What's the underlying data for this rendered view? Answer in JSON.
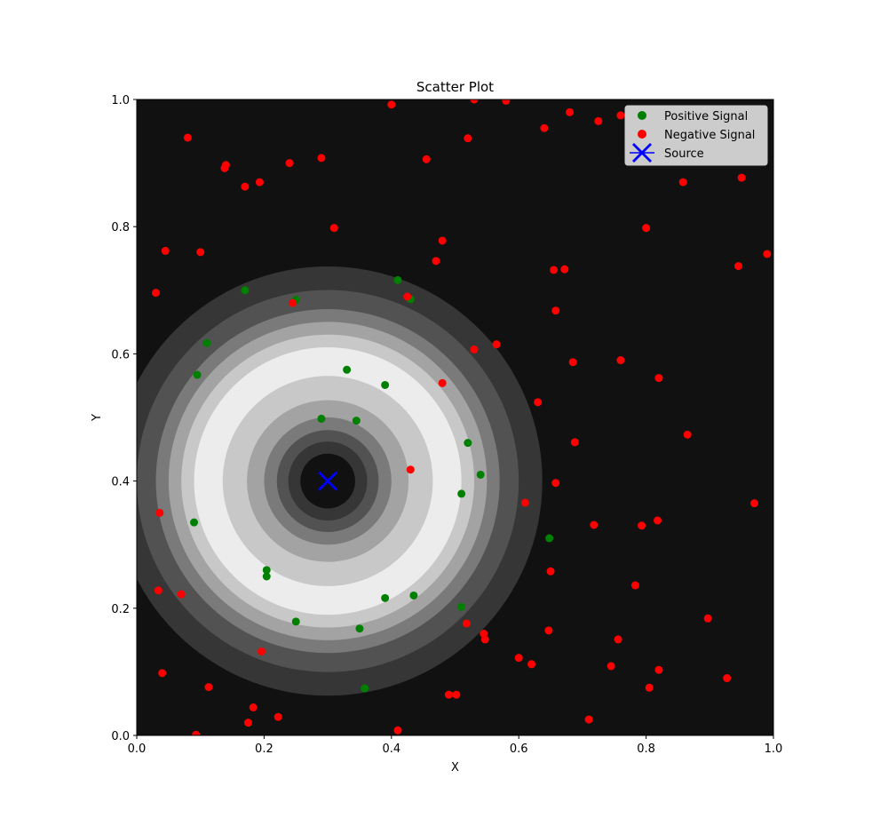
{
  "chart_data": {
    "type": "scatter",
    "title": "Scatter Plot",
    "xlabel": "X",
    "ylabel": "Y",
    "xlim": [
      0,
      1
    ],
    "ylim": [
      0,
      1
    ],
    "xticks": [
      "0.0",
      "0.2",
      "0.4",
      "0.6",
      "0.8",
      "1.0"
    ],
    "yticks": [
      "0.0",
      "0.2",
      "0.4",
      "0.6",
      "0.8",
      "1.0"
    ],
    "grid": false,
    "legend_position": "top-right",
    "background_color": "#111111",
    "field": {
      "type": "ring-contour",
      "center": [
        0.3,
        0.4
      ],
      "levels": [
        {
          "r": 0.337,
          "color": "#363636"
        },
        {
          "r": 0.3,
          "color": "#525252"
        },
        {
          "r": 0.27,
          "color": "#7a7a7a"
        },
        {
          "r": 0.25,
          "color": "#a3a3a3"
        },
        {
          "r": 0.23,
          "color": "#c8c8c8"
        },
        {
          "r": 0.21,
          "color": "#ececec"
        },
        {
          "r": 0.165,
          "color": "#c8c8c8"
        },
        {
          "r": 0.127,
          "color": "#a3a3a3"
        },
        {
          "r": 0.1,
          "color": "#7a7a7a"
        },
        {
          "r": 0.08,
          "color": "#525252"
        },
        {
          "r": 0.062,
          "color": "#363636"
        },
        {
          "r": 0.043,
          "color": "#111111"
        }
      ]
    },
    "series": [
      {
        "name": "Positive Signal",
        "color": "#008000",
        "marker": "circle",
        "points": [
          [
            0.17,
            0.7
          ],
          [
            0.25,
            0.685
          ],
          [
            0.41,
            0.716
          ],
          [
            0.43,
            0.686
          ],
          [
            0.11,
            0.617
          ],
          [
            0.095,
            0.567
          ],
          [
            0.33,
            0.575
          ],
          [
            0.39,
            0.551
          ],
          [
            0.29,
            0.498
          ],
          [
            0.345,
            0.495
          ],
          [
            0.52,
            0.46
          ],
          [
            0.54,
            0.41
          ],
          [
            0.51,
            0.38
          ],
          [
            0.09,
            0.335
          ],
          [
            0.648,
            0.31
          ],
          [
            0.204,
            0.26
          ],
          [
            0.204,
            0.25
          ],
          [
            0.39,
            0.216
          ],
          [
            0.435,
            0.22
          ],
          [
            0.51,
            0.202
          ],
          [
            0.25,
            0.179
          ],
          [
            0.35,
            0.168
          ],
          [
            0.358,
            0.074
          ]
        ]
      },
      {
        "name": "Negative Signal",
        "color": "#ff0000",
        "marker": "circle",
        "points": [
          [
            0.4,
            0.992
          ],
          [
            0.53,
            1.0
          ],
          [
            0.58,
            0.998
          ],
          [
            0.68,
            0.98
          ],
          [
            0.725,
            0.966
          ],
          [
            0.76,
            0.975
          ],
          [
            0.64,
            0.955
          ],
          [
            0.08,
            0.94
          ],
          [
            0.52,
            0.939
          ],
          [
            0.88,
            0.935
          ],
          [
            0.14,
            0.897
          ],
          [
            0.138,
            0.892
          ],
          [
            0.24,
            0.9
          ],
          [
            0.29,
            0.908
          ],
          [
            0.455,
            0.906
          ],
          [
            0.17,
            0.863
          ],
          [
            0.193,
            0.87
          ],
          [
            0.858,
            0.87
          ],
          [
            0.95,
            0.877
          ],
          [
            0.31,
            0.798
          ],
          [
            0.8,
            0.798
          ],
          [
            0.045,
            0.762
          ],
          [
            0.1,
            0.76
          ],
          [
            0.48,
            0.778
          ],
          [
            0.47,
            0.746
          ],
          [
            0.99,
            0.757
          ],
          [
            0.945,
            0.738
          ],
          [
            0.655,
            0.732
          ],
          [
            0.672,
            0.733
          ],
          [
            0.03,
            0.696
          ],
          [
            0.245,
            0.68
          ],
          [
            0.425,
            0.69
          ],
          [
            0.658,
            0.668
          ],
          [
            0.565,
            0.615
          ],
          [
            0.53,
            0.607
          ],
          [
            0.685,
            0.587
          ],
          [
            0.76,
            0.59
          ],
          [
            0.48,
            0.554
          ],
          [
            0.82,
            0.562
          ],
          [
            0.63,
            0.524
          ],
          [
            0.865,
            0.473
          ],
          [
            0.688,
            0.461
          ],
          [
            0.43,
            0.418
          ],
          [
            0.658,
            0.397
          ],
          [
            0.61,
            0.366
          ],
          [
            0.97,
            0.365
          ],
          [
            0.036,
            0.35
          ],
          [
            0.718,
            0.331
          ],
          [
            0.793,
            0.33
          ],
          [
            0.818,
            0.338
          ],
          [
            0.65,
            0.258
          ],
          [
            0.783,
            0.236
          ],
          [
            0.034,
            0.228
          ],
          [
            0.07,
            0.222
          ],
          [
            0.897,
            0.184
          ],
          [
            0.518,
            0.176
          ],
          [
            0.647,
            0.165
          ],
          [
            0.545,
            0.16
          ],
          [
            0.547,
            0.151
          ],
          [
            0.756,
            0.151
          ],
          [
            0.196,
            0.132
          ],
          [
            0.6,
            0.122
          ],
          [
            0.62,
            0.112
          ],
          [
            0.745,
            0.109
          ],
          [
            0.82,
            0.103
          ],
          [
            0.04,
            0.098
          ],
          [
            0.927,
            0.09
          ],
          [
            0.113,
            0.076
          ],
          [
            0.805,
            0.075
          ],
          [
            0.49,
            0.064
          ],
          [
            0.502,
            0.064
          ],
          [
            0.183,
            0.044
          ],
          [
            0.222,
            0.029
          ],
          [
            0.71,
            0.025
          ],
          [
            0.175,
            0.02
          ],
          [
            0.41,
            0.008
          ],
          [
            0.093,
            0.001
          ]
        ]
      }
    ],
    "source": {
      "name": "Source",
      "color": "#0000ff",
      "marker": "x",
      "x": 0.3,
      "y": 0.4
    }
  }
}
